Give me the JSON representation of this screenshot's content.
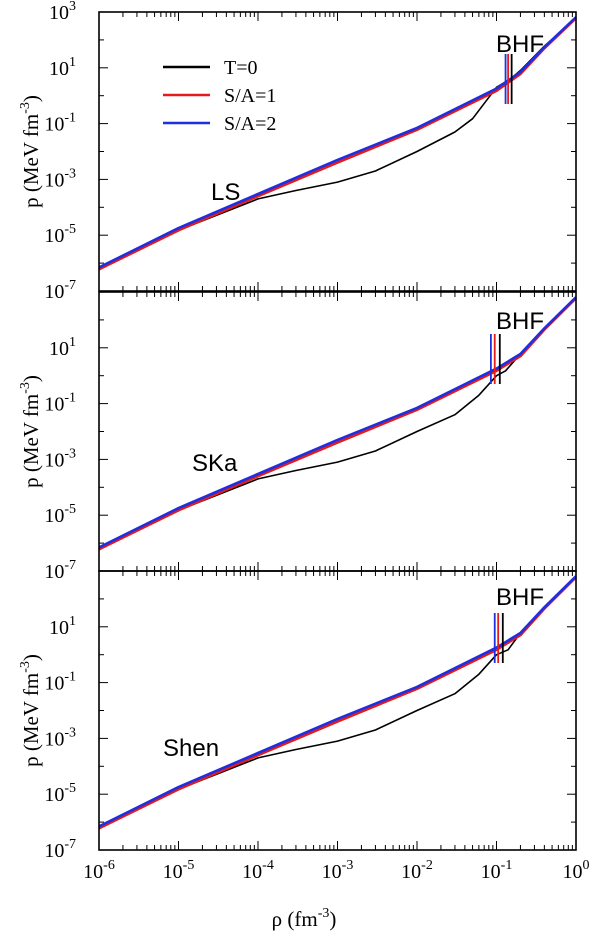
{
  "figure": {
    "xlabel_base": "ρ (fm",
    "xlabel_exp": "-3",
    "xlabel_end": ")",
    "ylabel_base": "p (MeV fm",
    "ylabel_exp": "-3",
    "ylabel_end": ")"
  },
  "legend": [
    {
      "label": "T=0",
      "color": "#000000"
    },
    {
      "label": "S/A=1",
      "color": "#e41a1c"
    },
    {
      "label": "S/A=2",
      "color": "#1f2fe0"
    }
  ],
  "chart_data": [
    {
      "type": "line",
      "panel_label": "LS",
      "annotation": "BHF",
      "x_log": true,
      "y_log": true,
      "xlim": [
        1e-06,
        1
      ],
      "ylim": [
        1e-07,
        1000
      ],
      "x_tick_labels": [
        "10-6",
        "10-5",
        "10-4",
        "10-3",
        "10-2",
        "10-1",
        "100"
      ],
      "y_tick_labels": [
        "10-7",
        "10-5",
        "10-3",
        "10-1",
        "101",
        "103"
      ],
      "series": [
        {
          "name": "T=0",
          "color": "#000000",
          "x": [
            1e-06,
            1e-05,
            0.0001,
            0.0003,
            0.001,
            0.003,
            0.01,
            0.03,
            0.05,
            0.1,
            0.15,
            0.2,
            0.4,
            1.0
          ],
          "y": [
            6e-07,
            1.5e-05,
            0.0002,
            0.0004,
            0.0008,
            0.002,
            0.01,
            0.05,
            0.15,
            2.0,
            4.0,
            8.0,
            60,
            600
          ]
        },
        {
          "name": "S/A=1",
          "color": "#e41a1c",
          "x": [
            1e-06,
            1e-05,
            0.0001,
            0.001,
            0.01,
            0.1,
            0.2,
            0.4,
            1.0
          ],
          "y": [
            6e-07,
            1.5e-05,
            0.00025,
            0.004,
            0.06,
            1.5,
            6.0,
            50,
            600
          ]
        },
        {
          "name": "S/A=2",
          "color": "#1f2fe0",
          "x": [
            1e-06,
            1e-05,
            0.0001,
            0.001,
            0.01,
            0.1,
            0.2,
            0.4,
            1.0
          ],
          "y": [
            7e-07,
            1.8e-05,
            0.0003,
            0.005,
            0.07,
            1.8,
            7.0,
            55,
            650
          ]
        }
      ],
      "vertical_markers": [
        {
          "x": 0.13,
          "color": "#1f2fe0"
        },
        {
          "x": 0.14,
          "color": "#e41a1c"
        },
        {
          "x": 0.155,
          "color": "#000000"
        }
      ]
    },
    {
      "type": "line",
      "panel_label": "SKa",
      "annotation": "BHF",
      "x_log": true,
      "y_log": true,
      "xlim": [
        1e-06,
        1
      ],
      "ylim": [
        1e-07,
        1000
      ],
      "x_tick_labels": [
        "10-6",
        "10-5",
        "10-4",
        "10-3",
        "10-2",
        "10-1",
        "100"
      ],
      "y_tick_labels": [
        "10-7",
        "10-5",
        "10-3",
        "10-1",
        "101",
        "103"
      ],
      "series": [
        {
          "name": "T=0",
          "color": "#000000",
          "x": [
            1e-06,
            1e-05,
            0.0001,
            0.0003,
            0.001,
            0.003,
            0.01,
            0.03,
            0.06,
            0.1,
            0.13,
            0.2,
            0.4,
            1.0
          ],
          "y": [
            6e-07,
            1.5e-05,
            0.0002,
            0.0004,
            0.0008,
            0.002,
            0.01,
            0.04,
            0.2,
            1.0,
            1.5,
            6.0,
            50,
            600
          ]
        },
        {
          "name": "S/A=1",
          "color": "#e41a1c",
          "x": [
            1e-06,
            1e-05,
            0.0001,
            0.001,
            0.01,
            0.1,
            0.2,
            0.4,
            1.0
          ],
          "y": [
            6e-07,
            1.5e-05,
            0.00025,
            0.004,
            0.06,
            1.5,
            5.0,
            45,
            600
          ]
        },
        {
          "name": "S/A=2",
          "color": "#1f2fe0",
          "x": [
            1e-06,
            1e-05,
            0.0001,
            0.001,
            0.01,
            0.1,
            0.2,
            0.4,
            1.0
          ],
          "y": [
            7e-07,
            1.8e-05,
            0.0003,
            0.005,
            0.07,
            1.8,
            6.0,
            50,
            650
          ]
        }
      ],
      "vertical_markers": [
        {
          "x": 0.085,
          "color": "#1f2fe0"
        },
        {
          "x": 0.095,
          "color": "#e41a1c"
        },
        {
          "x": 0.11,
          "color": "#000000"
        }
      ]
    },
    {
      "type": "line",
      "panel_label": "Shen",
      "annotation": "BHF",
      "x_log": true,
      "y_log": true,
      "xlim": [
        1e-06,
        1
      ],
      "ylim": [
        1e-07,
        1000
      ],
      "x_tick_labels": [
        "10-6",
        "10-5",
        "10-4",
        "10-3",
        "10-2",
        "10-1",
        "100"
      ],
      "y_tick_labels": [
        "10-7",
        "10-5",
        "10-3",
        "10-1",
        "101",
        "103"
      ],
      "series": [
        {
          "name": "T=0",
          "color": "#000000",
          "x": [
            1e-06,
            1e-05,
            0.0001,
            0.0003,
            0.001,
            0.003,
            0.01,
            0.03,
            0.06,
            0.1,
            0.14,
            0.2,
            0.4,
            1.0
          ],
          "y": [
            6e-07,
            1.5e-05,
            0.0002,
            0.0004,
            0.0008,
            0.002,
            0.01,
            0.04,
            0.2,
            1.0,
            1.5,
            6.0,
            50,
            600
          ]
        },
        {
          "name": "S/A=1",
          "color": "#e41a1c",
          "x": [
            1e-06,
            1e-05,
            0.0001,
            0.001,
            0.01,
            0.1,
            0.2,
            0.4,
            1.0
          ],
          "y": [
            6e-07,
            1.5e-05,
            0.00025,
            0.004,
            0.06,
            1.5,
            5.0,
            45,
            600
          ]
        },
        {
          "name": "S/A=2",
          "color": "#1f2fe0",
          "x": [
            1e-06,
            1e-05,
            0.0001,
            0.001,
            0.01,
            0.1,
            0.2,
            0.4,
            1.0
          ],
          "y": [
            7e-07,
            1.8e-05,
            0.0003,
            0.005,
            0.07,
            1.8,
            6.0,
            50,
            650
          ]
        }
      ],
      "vertical_markers": [
        {
          "x": 0.095,
          "color": "#1f2fe0"
        },
        {
          "x": 0.105,
          "color": "#e41a1c"
        },
        {
          "x": 0.12,
          "color": "#000000"
        }
      ]
    }
  ]
}
